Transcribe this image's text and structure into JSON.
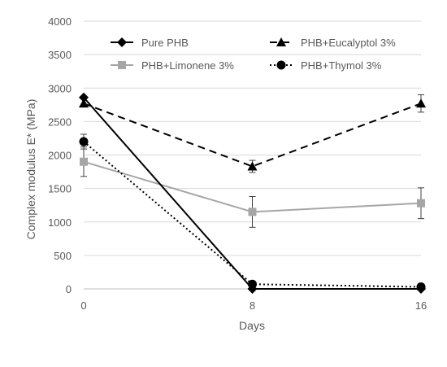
{
  "chart_data": {
    "type": "line",
    "xlabel": "Days",
    "ylabel": "Complex modulus E* (MPa)",
    "x": [
      0,
      8,
      16
    ],
    "x_tick_labels": [
      "0",
      "8",
      "16"
    ],
    "ylim": [
      0,
      4000
    ],
    "y_ticks": [
      0,
      500,
      1000,
      1500,
      2000,
      2500,
      3000,
      3500,
      4000
    ],
    "y_tick_labels": [
      "0",
      "500",
      "1000",
      "1500",
      "2000",
      "2500",
      "3000",
      "3500",
      "4000"
    ],
    "grid": "horizontal",
    "legend_position": "top",
    "series": [
      {
        "name": "Pure PHB",
        "values": [
          2860,
          0,
          0
        ],
        "error": [
          0,
          0,
          0
        ],
        "color": "#000000",
        "line": "solid",
        "marker": "diamond"
      },
      {
        "name": "PHB+Eucalyptol 3%",
        "values": [
          2770,
          1830,
          2770
        ],
        "error": [
          0,
          90,
          130
        ],
        "color": "#000000",
        "line": "dashed",
        "marker": "triangle"
      },
      {
        "name": "PHB+Limonene 3%",
        "values": [
          1900,
          1150,
          1280
        ],
        "error": [
          220,
          230,
          230
        ],
        "color": "#a6a6a6",
        "line": "solid",
        "marker": "square"
      },
      {
        "name": "PHB+Thymol 3%",
        "values": [
          2200,
          70,
          30
        ],
        "error": [
          110,
          0,
          0
        ],
        "color": "#000000",
        "line": "dotted",
        "marker": "circle"
      }
    ]
  }
}
